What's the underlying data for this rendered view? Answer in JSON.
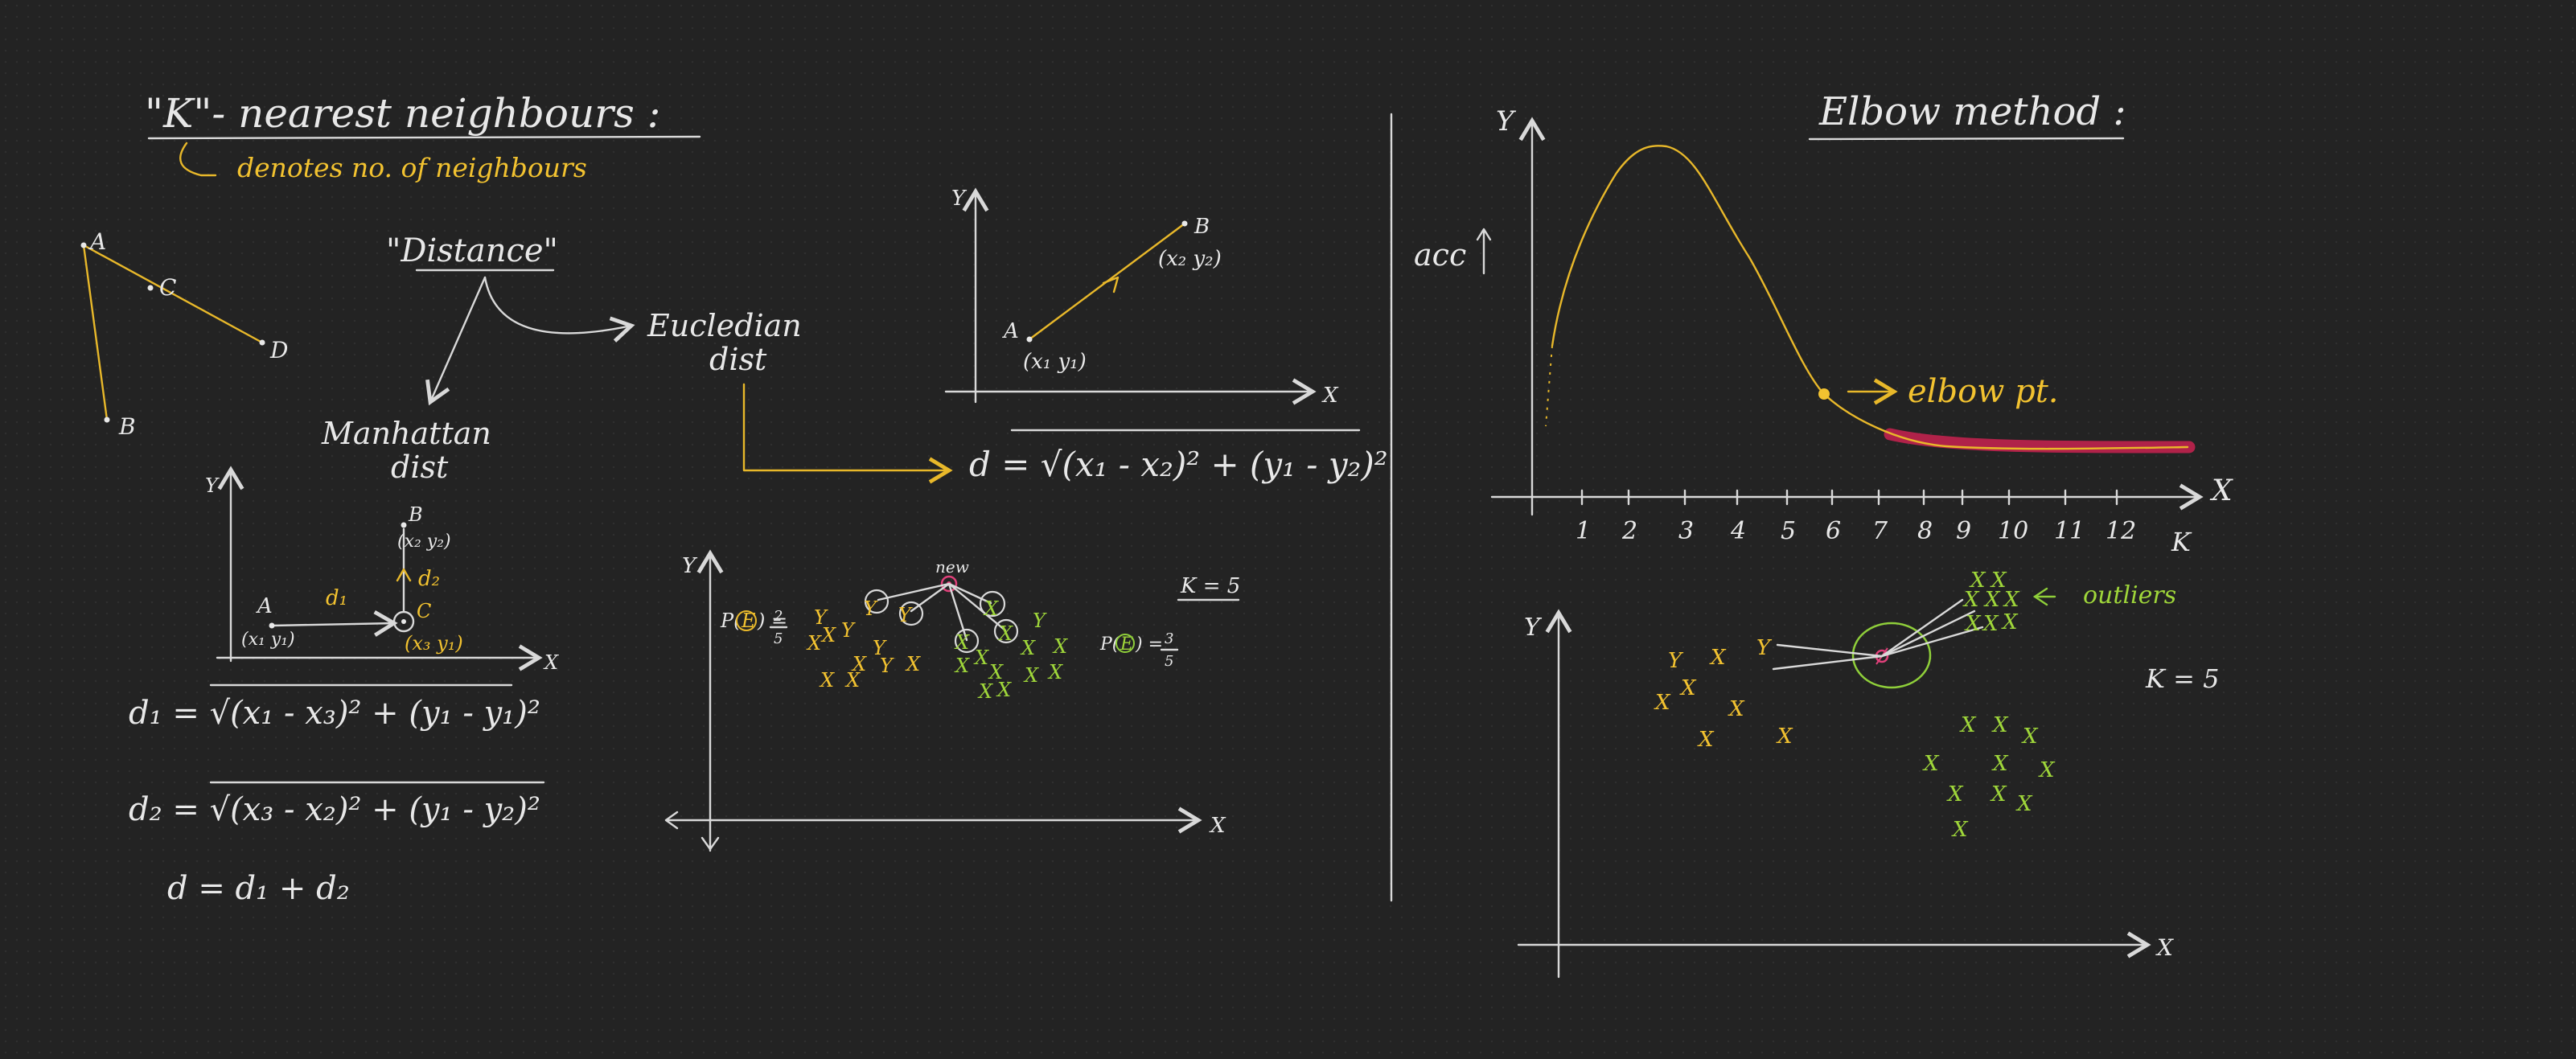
{
  "colors": {
    "background": "#232323",
    "white_ink": "#e8e8e8",
    "yellow_ink": "#f2c230",
    "green_ink": "#9fd63a",
    "pink_ink": "#e0407a",
    "red_highlight": "#c0224e"
  },
  "knn": {
    "title": "\"K\"- nearest neighbours :",
    "subtitle": "denotes no. of neighbours",
    "triangle_points": [
      "A",
      "C",
      "D",
      "B"
    ],
    "distance_label": "\"Distance\"",
    "euclidean_label_1": "Eucledian",
    "euclidean_label_2": "dist",
    "manhattan_label_1": "Manhattan",
    "manhattan_label_2": "dist"
  },
  "euclid_graph": {
    "y_axis": "Y",
    "x_axis": "X",
    "point_a": "A",
    "point_a_coords": "(x₁ y₁)",
    "point_b": "B",
    "point_b_coords": "(x₂ y₂)",
    "formula": "d = √(x₁ - x₂)² + (y₁ - y₂)²"
  },
  "manhattan_graph": {
    "y_axis": "Y",
    "x_axis": "X",
    "point_a": "A",
    "point_a_coords": "(x₁ y₁)",
    "point_b": "B",
    "point_b_coords": "(x₂ y₂)",
    "point_c": "C",
    "point_c_coords": "(x₃ y₁)",
    "d1": "d₁",
    "d2": "d₂",
    "formula_1": "d₁ = √(x₁ - x₃)² + (y₁ - y₁)²",
    "formula_2": "d₂ = √(x₃ - x₂)² + (y₁ - y₂)²",
    "formula_3": "d = d₁ + d₂"
  },
  "classify_graph": {
    "y_axis": "Y",
    "x_axis": "X",
    "new_label": "new",
    "k_label": "K = 5",
    "p_yellow": "P(",
    "p_yellow_num": "2",
    "p_yellow_den": "5",
    "p_green": "P(",
    "p_green_num": "3",
    "p_green_den": "5",
    "e_label": "E",
    "y_marker": "Y",
    "x_marker": "X"
  },
  "elbow": {
    "title": "Elbow method :",
    "y_axis": "Y",
    "y_label": "acc",
    "x_axis": "X",
    "k_axis": "K",
    "ticks": [
      "1",
      "2",
      "3",
      "4",
      "5",
      "6",
      "7",
      "8",
      "9",
      "10",
      "11",
      "12"
    ],
    "elbow_label": "elbow pt."
  },
  "outlier_graph": {
    "y_axis": "Y",
    "x_axis": "X",
    "outliers_label": "outliers",
    "k_label": "K = 5"
  }
}
